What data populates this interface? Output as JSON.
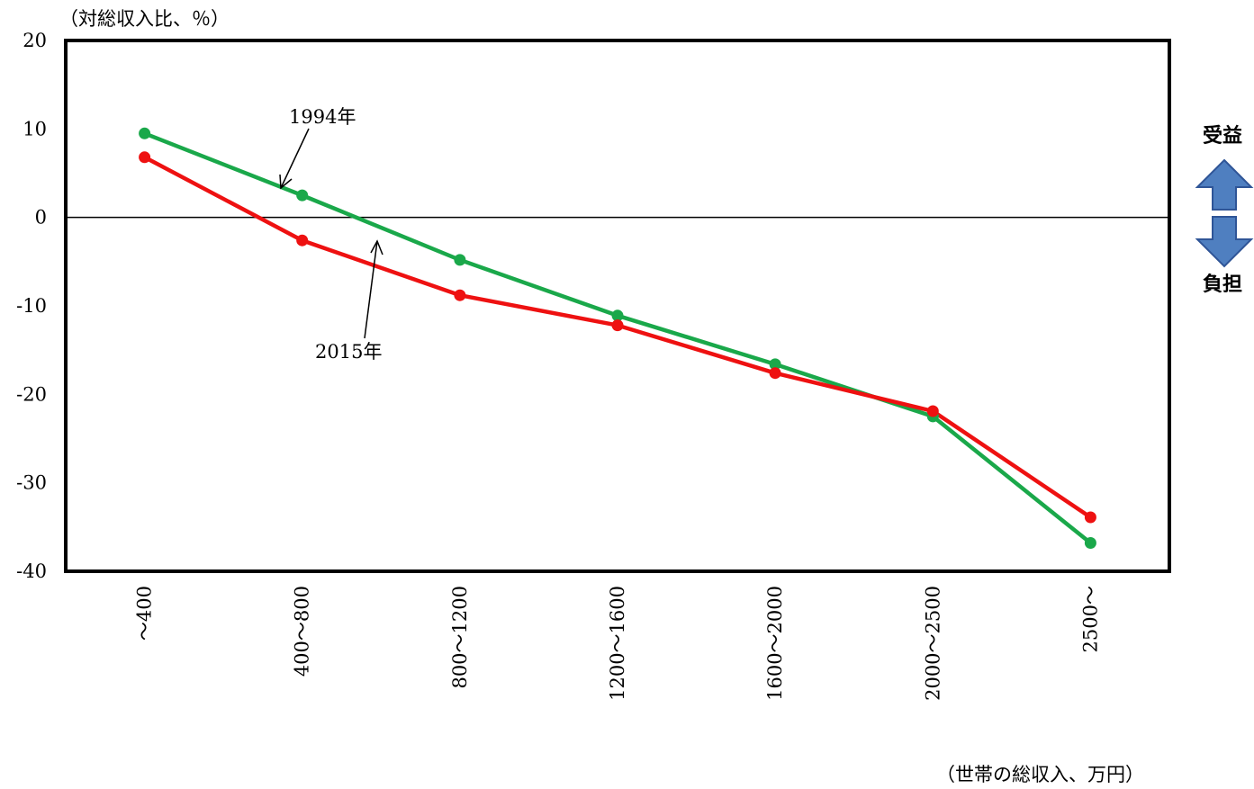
{
  "chart_data": {
    "type": "line",
    "ylabel": "（対総収入比、％）",
    "xlabel": "（世帯の総収入、万円）",
    "categories": [
      "～400",
      "400～800",
      "800～1200",
      "1200～1600",
      "1600～2000",
      "2000～2500",
      "2500～"
    ],
    "ylim": [
      -40,
      20
    ],
    "yticks": [
      20,
      10,
      0,
      -10,
      -20,
      -30,
      -40
    ],
    "grid": false,
    "series": [
      {
        "name": "1994年",
        "color": "#1aa84a",
        "values": [
          9.5,
          2.5,
          -4.8,
          -11.1,
          -16.6,
          -22.5,
          -36.8
        ]
      },
      {
        "name": "2015年",
        "color": "#ee1111",
        "values": [
          6.8,
          -2.6,
          -8.8,
          -12.2,
          -17.6,
          -21.9,
          -33.9
        ]
      }
    ],
    "annotations": {
      "series1_label": "1994年",
      "series2_label": "2015年"
    },
    "side_labels": {
      "up": "受益",
      "down": "負担",
      "arrow_color": "#4f7fc0"
    }
  }
}
